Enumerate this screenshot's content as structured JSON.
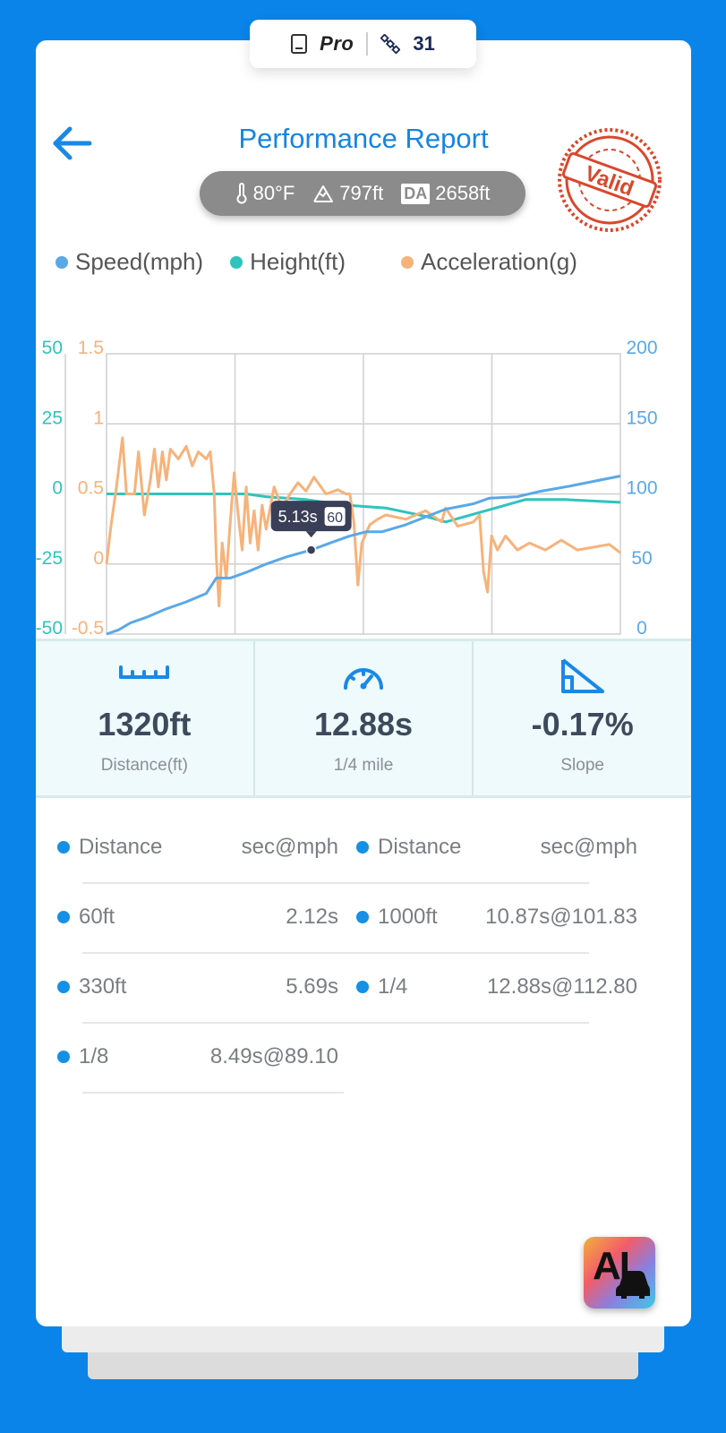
{
  "top_pill": {
    "plan": "Pro",
    "satellites": "31"
  },
  "header": {
    "title": "Performance Report",
    "stamp": "Valid"
  },
  "conditions": {
    "temperature": "80°F",
    "altitude": "797ft",
    "da_label": "DA",
    "density_altitude": "2658ft"
  },
  "legend": [
    {
      "label": "Speed(mph)",
      "color": "#5aa8e8"
    },
    {
      "label": "Height(ft)",
      "color": "#2ec4bc"
    },
    {
      "label": "Acceleration(g)",
      "color": "#f7b27a"
    }
  ],
  "chart_data": {
    "type": "line",
    "x_range": [
      0,
      12.88
    ],
    "tooltip": {
      "time": "5.13s",
      "speed": "60",
      "x": 5.13
    },
    "axes": {
      "height": {
        "ticks": [
          "50",
          "25",
          "0",
          "-25",
          "-50"
        ],
        "range": [
          -50,
          50
        ],
        "color": "#2ec4bc"
      },
      "acceleration": {
        "ticks": [
          "1.5",
          "1",
          "0.5",
          "0",
          "-0.5"
        ],
        "range": [
          -0.5,
          1.5
        ],
        "color": "#f7b27a"
      },
      "speed": {
        "ticks": [
          "200",
          "150",
          "100",
          "50",
          "0"
        ],
        "range": [
          0,
          200
        ],
        "color": "#5aa8e8"
      }
    },
    "series": [
      {
        "name": "Speed(mph)",
        "axis": "speed",
        "color": "#5aa8e8",
        "points": [
          [
            0,
            0
          ],
          [
            0.3,
            3
          ],
          [
            0.6,
            8
          ],
          [
            1,
            12
          ],
          [
            1.5,
            18
          ],
          [
            2,
            23
          ],
          [
            2.5,
            29
          ],
          [
            2.75,
            40
          ],
          [
            3.1,
            40
          ],
          [
            3.5,
            44
          ],
          [
            4,
            50
          ],
          [
            4.5,
            55
          ],
          [
            5.13,
            60
          ],
          [
            5.6,
            65
          ],
          [
            6.1,
            70
          ],
          [
            6.5,
            73
          ],
          [
            6.9,
            73
          ],
          [
            7.5,
            78
          ],
          [
            8.49,
            89.1
          ],
          [
            9.2,
            93
          ],
          [
            9.6,
            97
          ],
          [
            10.3,
            98
          ],
          [
            10.87,
            101.83
          ],
          [
            11.6,
            105.5
          ],
          [
            12.3,
            109.5
          ],
          [
            12.88,
            112.8
          ]
        ]
      },
      {
        "name": "Height(ft)",
        "axis": "height",
        "color": "#2ec4bc",
        "points": [
          [
            0,
            0
          ],
          [
            1,
            0
          ],
          [
            2,
            0
          ],
          [
            2.5,
            0
          ],
          [
            3,
            0
          ],
          [
            3.5,
            0
          ],
          [
            4,
            -1
          ],
          [
            5,
            -2
          ],
          [
            6,
            -4
          ],
          [
            7,
            -5
          ],
          [
            8,
            -8
          ],
          [
            8.5,
            -10
          ],
          [
            9.5,
            -6
          ],
          [
            10.5,
            -2
          ],
          [
            11.5,
            -2
          ],
          [
            12.88,
            -3
          ]
        ]
      },
      {
        "name": "Acceleration(g)",
        "axis": "acceleration",
        "color": "#f7b27a",
        "points": [
          [
            0,
            0
          ],
          [
            0.1,
            0.25
          ],
          [
            0.25,
            0.55
          ],
          [
            0.4,
            0.9
          ],
          [
            0.5,
            0.5
          ],
          [
            0.7,
            0.5
          ],
          [
            0.8,
            0.8
          ],
          [
            0.95,
            0.35
          ],
          [
            1.1,
            0.6
          ],
          [
            1.2,
            0.82
          ],
          [
            1.3,
            0.55
          ],
          [
            1.4,
            0.8
          ],
          [
            1.5,
            0.6
          ],
          [
            1.6,
            0.82
          ],
          [
            1.8,
            0.75
          ],
          [
            2,
            0.84
          ],
          [
            2.15,
            0.7
          ],
          [
            2.3,
            0.8
          ],
          [
            2.5,
            0.75
          ],
          [
            2.6,
            0.8
          ],
          [
            2.7,
            0.5
          ],
          [
            2.75,
            0.05
          ],
          [
            2.82,
            -0.3
          ],
          [
            2.9,
            0.15
          ],
          [
            3,
            -0.1
          ],
          [
            3.1,
            0.3
          ],
          [
            3.2,
            0.65
          ],
          [
            3.3,
            0.35
          ],
          [
            3.4,
            0.1
          ],
          [
            3.5,
            0.55
          ],
          [
            3.6,
            0.15
          ],
          [
            3.7,
            0.38
          ],
          [
            3.8,
            0.1
          ],
          [
            3.9,
            0.42
          ],
          [
            4,
            0.25
          ],
          [
            4.2,
            0.55
          ],
          [
            4.4,
            0.4
          ],
          [
            4.6,
            0.5
          ],
          [
            4.8,
            0.58
          ],
          [
            5,
            0.52
          ],
          [
            5.2,
            0.62
          ],
          [
            5.5,
            0.5
          ],
          [
            5.8,
            0.53
          ],
          [
            6,
            0.5
          ],
          [
            6.1,
            0.5
          ],
          [
            6.2,
            0.3
          ],
          [
            6.3,
            -0.15
          ],
          [
            6.4,
            0.15
          ],
          [
            6.6,
            0.28
          ],
          [
            6.8,
            0.32
          ],
          [
            7,
            0.35
          ],
          [
            7.5,
            0.32
          ],
          [
            8,
            0.38
          ],
          [
            8.4,
            0.3
          ],
          [
            8.5,
            0.4
          ],
          [
            8.8,
            0.27
          ],
          [
            9.2,
            0.3
          ],
          [
            9.35,
            0.35
          ],
          [
            9.45,
            -0.05
          ],
          [
            9.55,
            -0.2
          ],
          [
            9.65,
            0.2
          ],
          [
            9.8,
            0.1
          ],
          [
            10,
            0.2
          ],
          [
            10.3,
            0.1
          ],
          [
            10.6,
            0.15
          ],
          [
            11,
            0.1
          ],
          [
            11.4,
            0.17
          ],
          [
            11.8,
            0.1
          ],
          [
            12.2,
            0.12
          ],
          [
            12.6,
            0.14
          ],
          [
            12.88,
            0.08
          ]
        ]
      }
    ]
  },
  "stats": [
    {
      "value": "1320ft",
      "label": "Distance(ft)",
      "icon": "ruler-icon"
    },
    {
      "value": "12.88s",
      "label": "1/4 mile",
      "icon": "speedometer-icon"
    },
    {
      "value": "-0.17%",
      "label": "Slope",
      "icon": "slope-icon"
    }
  ],
  "table": {
    "header": {
      "left_label": "Distance",
      "left_value": "sec@mph",
      "right_label": "Distance",
      "right_value": "sec@mph"
    },
    "left_rows": [
      {
        "label": "60ft",
        "value": "2.12s"
      },
      {
        "label": "330ft",
        "value": "5.69s"
      },
      {
        "label": "1/8",
        "value": "8.49s@89.10"
      }
    ],
    "right_rows": [
      {
        "label": "1000ft",
        "value": "10.87s@101.83"
      },
      {
        "label": "1/4",
        "value": "12.88s@112.80"
      }
    ]
  },
  "ai_button": {
    "label": "AI"
  }
}
